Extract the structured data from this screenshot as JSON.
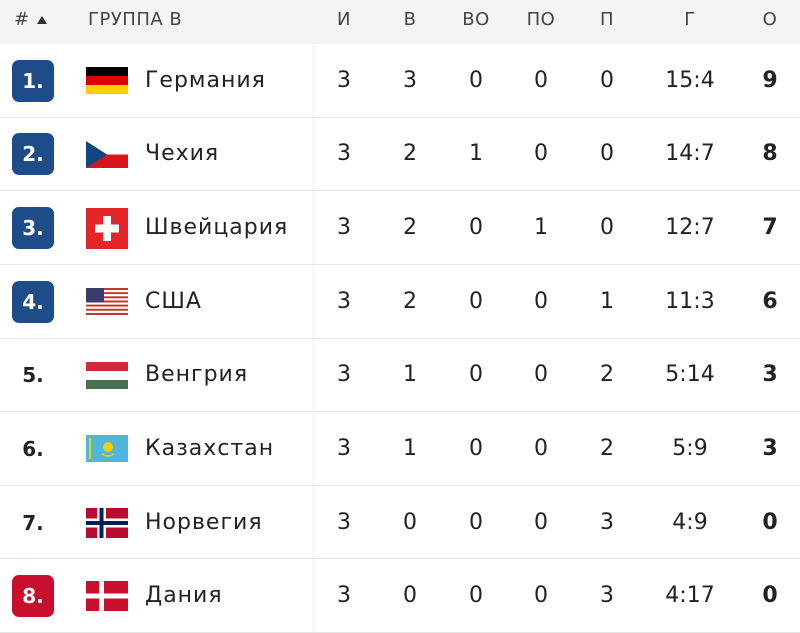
{
  "header": {
    "rank": "#",
    "group": "ГРУППА В",
    "columns": [
      "И",
      "В",
      "ВО",
      "ПО",
      "П",
      "Г",
      "О"
    ]
  },
  "rows": [
    {
      "rank": "1.",
      "team": "Германия",
      "stats": [
        3,
        3,
        0,
        0,
        0,
        "15:4",
        9
      ],
      "badge_color": "#1d4c88"
    },
    {
      "rank": "2.",
      "team": "Чехия",
      "stats": [
        3,
        2,
        1,
        0,
        0,
        "14:7",
        8
      ],
      "badge_color": "#1d4c88"
    },
    {
      "rank": "3.",
      "team": "Швейцария",
      "stats": [
        3,
        2,
        0,
        1,
        0,
        "12:7",
        7
      ],
      "badge_color": "#1d4c88"
    },
    {
      "rank": "4.",
      "team": "США",
      "stats": [
        3,
        2,
        0,
        0,
        1,
        "11:3",
        6
      ],
      "badge_color": "#1d4c88"
    },
    {
      "rank": "5.",
      "team": "Венгрия",
      "stats": [
        3,
        1,
        0,
        0,
        2,
        "5:14",
        3
      ]
    },
    {
      "rank": "6.",
      "team": "Казахстан",
      "stats": [
        3,
        1,
        0,
        0,
        2,
        "5:9",
        3
      ]
    },
    {
      "rank": "7.",
      "team": "Норвегия",
      "stats": [
        3,
        0,
        0,
        0,
        3,
        "4:9",
        0
      ]
    },
    {
      "rank": "8.",
      "team": "Дания",
      "stats": [
        3,
        0,
        0,
        0,
        3,
        "4:17",
        0
      ],
      "badge_color": "#c8102e"
    }
  ]
}
